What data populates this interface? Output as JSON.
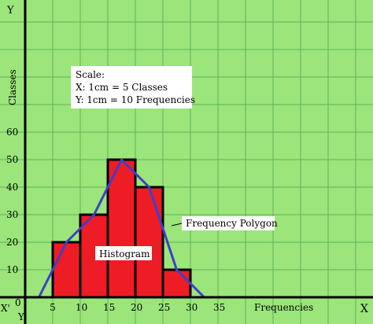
{
  "chart_data": {
    "type": "bar",
    "title": "",
    "xlabel": "Frequencies",
    "ylabel": "Classes",
    "axis_letters": {
      "x_left": "X'",
      "x_right": "X",
      "y_top": "Y",
      "y_bottom": "Y'",
      "origin": "0"
    },
    "x_ticks": [
      "5",
      "10",
      "15",
      "20",
      "25",
      "30",
      "35"
    ],
    "y_ticks": [
      "10",
      "20",
      "30",
      "40",
      "50",
      "60"
    ],
    "xlim": [
      0,
      60
    ],
    "ylim": [
      0,
      68
    ],
    "grid": true,
    "scale": {
      "heading": "Scale:",
      "x_line": "X: 1cm = 5 Classes",
      "y_line": "Y: 1cm = 10 Frequencies"
    },
    "histogram": {
      "label": "Histogram",
      "bars": [
        {
          "x0": 5,
          "x1": 10,
          "value": 20
        },
        {
          "x0": 10,
          "x1": 15,
          "value": 30
        },
        {
          "x0": 15,
          "x1": 20,
          "value": 50
        },
        {
          "x0": 20,
          "x1": 25,
          "value": 40
        },
        {
          "x0": 25,
          "x1": 30,
          "value": 10
        }
      ]
    },
    "polygon": {
      "label": "Frequency Polygon",
      "points": [
        [
          2.5,
          0
        ],
        [
          7.5,
          20
        ],
        [
          12.5,
          30
        ],
        [
          17.5,
          50
        ],
        [
          22.5,
          40
        ],
        [
          27.5,
          10
        ],
        [
          32.5,
          0
        ]
      ]
    },
    "colors": {
      "background": "#9be57a",
      "grid": "#5fb35a",
      "bar_fill": "#ee1c24",
      "bar_stroke": "#000000",
      "polygon": "#3f3fc8",
      "axis": "#000000"
    }
  }
}
